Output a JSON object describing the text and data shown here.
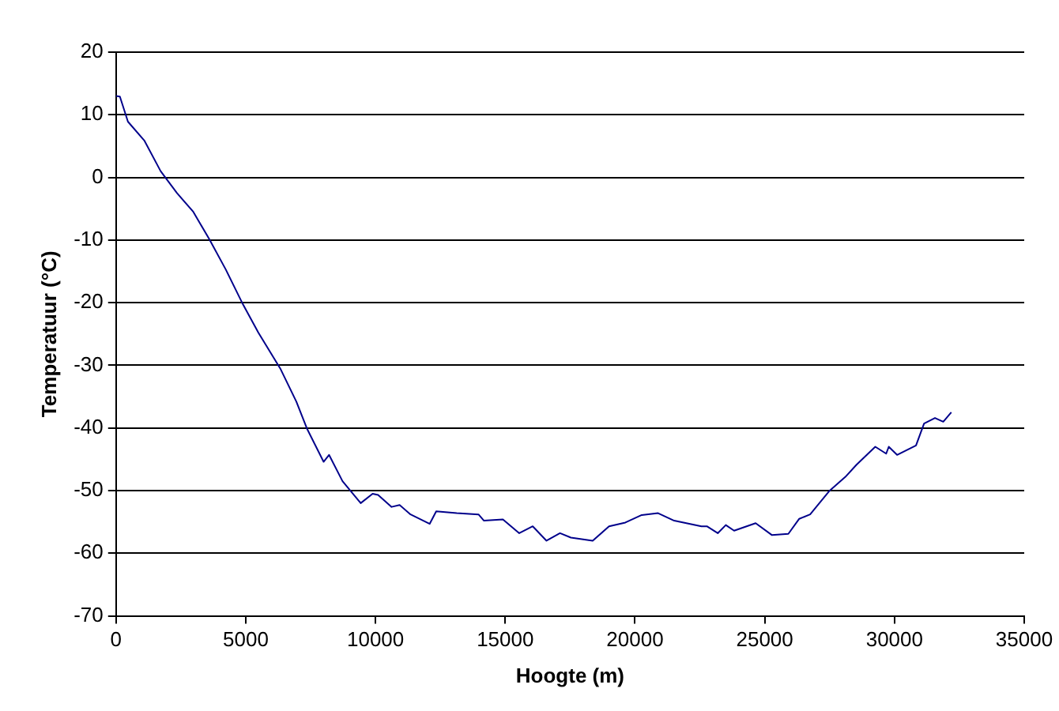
{
  "chart_data": {
    "type": "line",
    "xlabel": "Hoogte (m)",
    "ylabel": "Temperatuur (°C)",
    "xlim": [
      0,
      35000
    ],
    "xticks": [
      0,
      5000,
      10000,
      15000,
      20000,
      25000,
      30000,
      35000
    ],
    "ylim": [
      -70,
      20
    ],
    "yticks": [
      -70,
      -60,
      -50,
      -40,
      -30,
      -20,
      -10,
      0,
      10,
      20
    ],
    "grid": "y",
    "legend": false,
    "marker": "none",
    "line_style": "solid",
    "series": [
      {
        "color": "#00008b",
        "x": [
          0,
          150,
          460,
          1090,
          1720,
          2350,
          2980,
          3600,
          4230,
          4860,
          5490,
          6330,
          6950,
          7370,
          8000,
          8210,
          8730,
          9430,
          9890,
          10100,
          10620,
          10930,
          11350,
          12090,
          12340,
          13130,
          13970,
          14180,
          14910,
          15540,
          16060,
          16590,
          17110,
          17530,
          18370,
          19000,
          19630,
          20260,
          20890,
          21510,
          22560,
          22770,
          23190,
          23500,
          23820,
          24650,
          25280,
          25910,
          26330,
          26750,
          27480,
          28110,
          28530,
          29260,
          29680,
          29780,
          30100,
          30830,
          31140,
          31560,
          31880,
          32190
        ],
        "values": [
          13,
          12.9,
          8.9,
          5.9,
          1,
          -2.5,
          -5.5,
          -9.9,
          -14.7,
          -20,
          -24.8,
          -30.5,
          -35.8,
          -40.2,
          -45.4,
          -44.3,
          -48.5,
          -52,
          -50.5,
          -50.7,
          -52.6,
          -52.3,
          -53.8,
          -55.3,
          -53.3,
          -53.6,
          -53.8,
          -54.8,
          -54.6,
          -56.8,
          -55.7,
          -58,
          -56.8,
          -57.5,
          -58,
          -55.7,
          -55.1,
          -53.9,
          -53.6,
          -54.8,
          -55.7,
          -55.7,
          -56.8,
          -55.5,
          -56.4,
          -55.2,
          -57.1,
          -56.9,
          -54.5,
          -53.8,
          -50.1,
          -47.8,
          -45.9,
          -43,
          -44.1,
          -43,
          -44.3,
          -42.8,
          -39.3,
          -38.4,
          -39,
          -37.5
        ]
      }
    ]
  }
}
